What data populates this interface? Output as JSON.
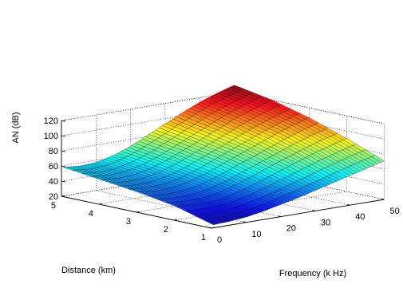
{
  "chart_data": {
    "type": "surface",
    "title": "",
    "zlabel": "AN (dB)",
    "xlabel": "Frequency (k Hz)",
    "ylabel": "Distance (km)",
    "x_ticks": [
      "0",
      "10",
      "20",
      "30",
      "40",
      "50"
    ],
    "y_ticks": [
      "1",
      "2",
      "3",
      "4",
      "5"
    ],
    "z_ticks": [
      "20",
      "40",
      "60",
      "80",
      "100",
      "120"
    ],
    "xlim": [
      0,
      50
    ],
    "ylim": [
      1,
      5
    ],
    "zlim": [
      20,
      120
    ],
    "grid": true,
    "colormap": "jet",
    "mesh_edges": "#000000",
    "frequency_khz": [
      0.5,
      5,
      10,
      15,
      20,
      25,
      30,
      35,
      40,
      45,
      50
    ],
    "distance_km": [
      1,
      2,
      3,
      4,
      5
    ],
    "an_db": [
      [
        24.0,
        25.0,
        27.0,
        31.0,
        36.0,
        41.0,
        47.0,
        53.0,
        59.0,
        65.0,
        71.0
      ],
      [
        38.0,
        36.5,
        36.0,
        39.0,
        45.0,
        53.0,
        61.0,
        69.0,
        77.0,
        84.0,
        90.0
      ],
      [
        46.0,
        44.0,
        44.5,
        48.5,
        56.0,
        65.0,
        74.0,
        83.0,
        92.0,
        100.0,
        107.0
      ],
      [
        52.0,
        50.0,
        51.0,
        56.0,
        64.0,
        74.0,
        84.0,
        94.0,
        104.0,
        112.0,
        120.0
      ],
      [
        58.0,
        56.0,
        57.0,
        62.5,
        71.0,
        82.0,
        93.0,
        104.0,
        114.0,
        122.0,
        129.0
      ]
    ]
  }
}
